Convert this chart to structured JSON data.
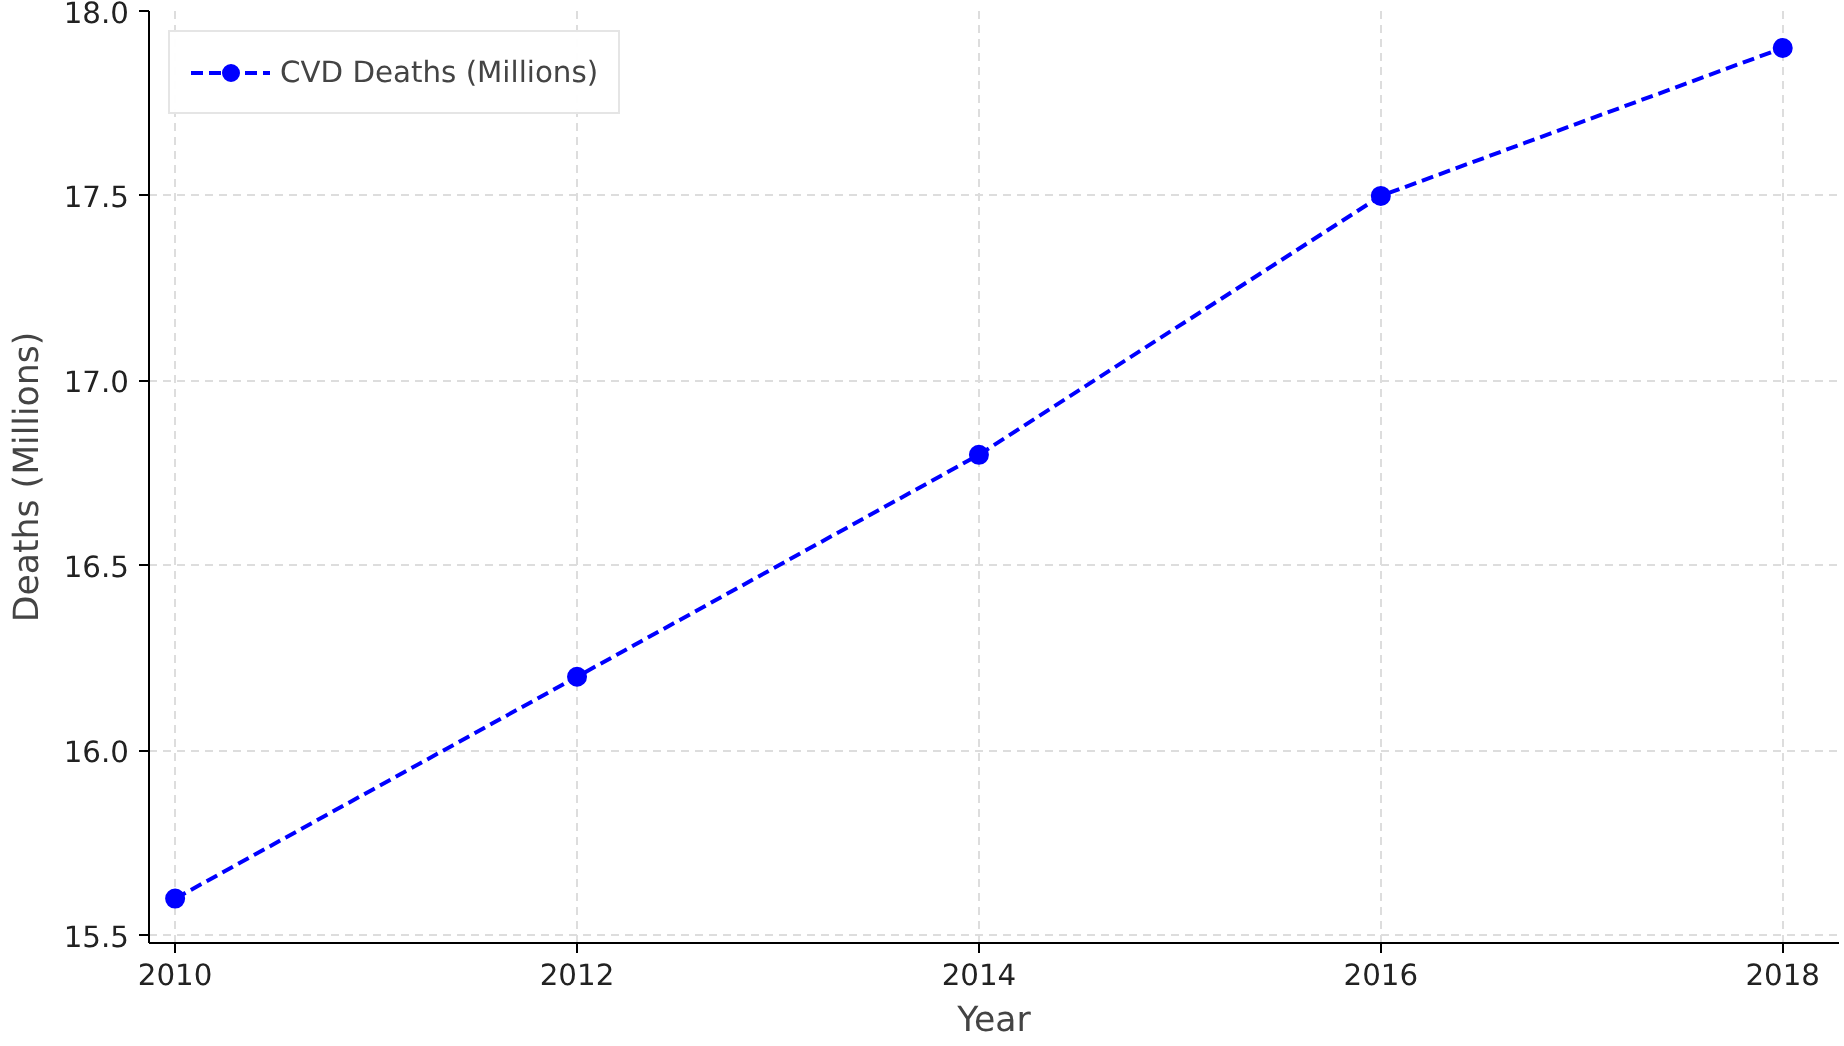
{
  "chart_data": {
    "type": "line",
    "xlabel": "Year",
    "ylabel": "Deaths (Millions)",
    "x": [
      2010,
      2012,
      2014,
      2016,
      2018
    ],
    "series": [
      {
        "name": "CVD Deaths (Millions)",
        "color": "#0000ff",
        "values": [
          15.6,
          16.2,
          16.8,
          17.5,
          17.9
        ]
      }
    ],
    "xlim": [
      2009.87,
      2018.28
    ],
    "ylim": [
      15.48,
      18.0
    ],
    "xticks": [
      2010,
      2012,
      2014,
      2016,
      2018
    ],
    "yticks": [
      15.5,
      {
        "value": 16.0,
        "label": "16.0"
      },
      16.5,
      {
        "value": 17.0,
        "label": "17.0"
      },
      17.5,
      {
        "value": 18.0,
        "label": "18.0"
      }
    ],
    "grid": true,
    "legend": "top left",
    "marker": "circle",
    "line_style": "dashed"
  }
}
